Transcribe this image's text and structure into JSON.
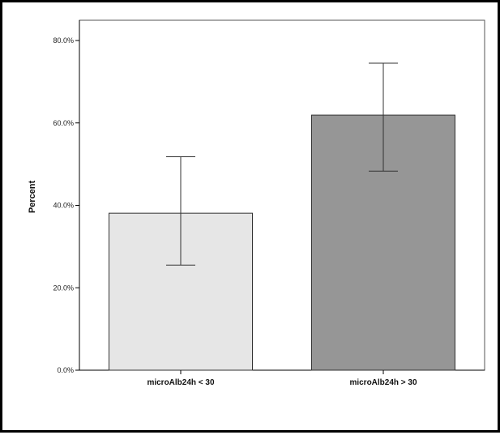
{
  "chart_data": {
    "type": "bar",
    "title": "",
    "xlabel": "",
    "ylabel": "Percent",
    "ylim": [
      0,
      80
    ],
    "yticks": [
      0,
      20,
      40,
      60,
      80
    ],
    "ytick_labels": [
      "0.0%",
      "20.0%",
      "40.0%",
      "60.0%",
      "80.0%"
    ],
    "categories": [
      "microAlb24h < 30",
      "microAlb24h > 30"
    ],
    "values": [
      38.1,
      61.9
    ],
    "error_low": [
      25.5,
      48.3
    ],
    "error_high": [
      51.8,
      74.5
    ],
    "bar_colors": [
      "#e6e6e6",
      "#969696"
    ],
    "grid": false
  }
}
